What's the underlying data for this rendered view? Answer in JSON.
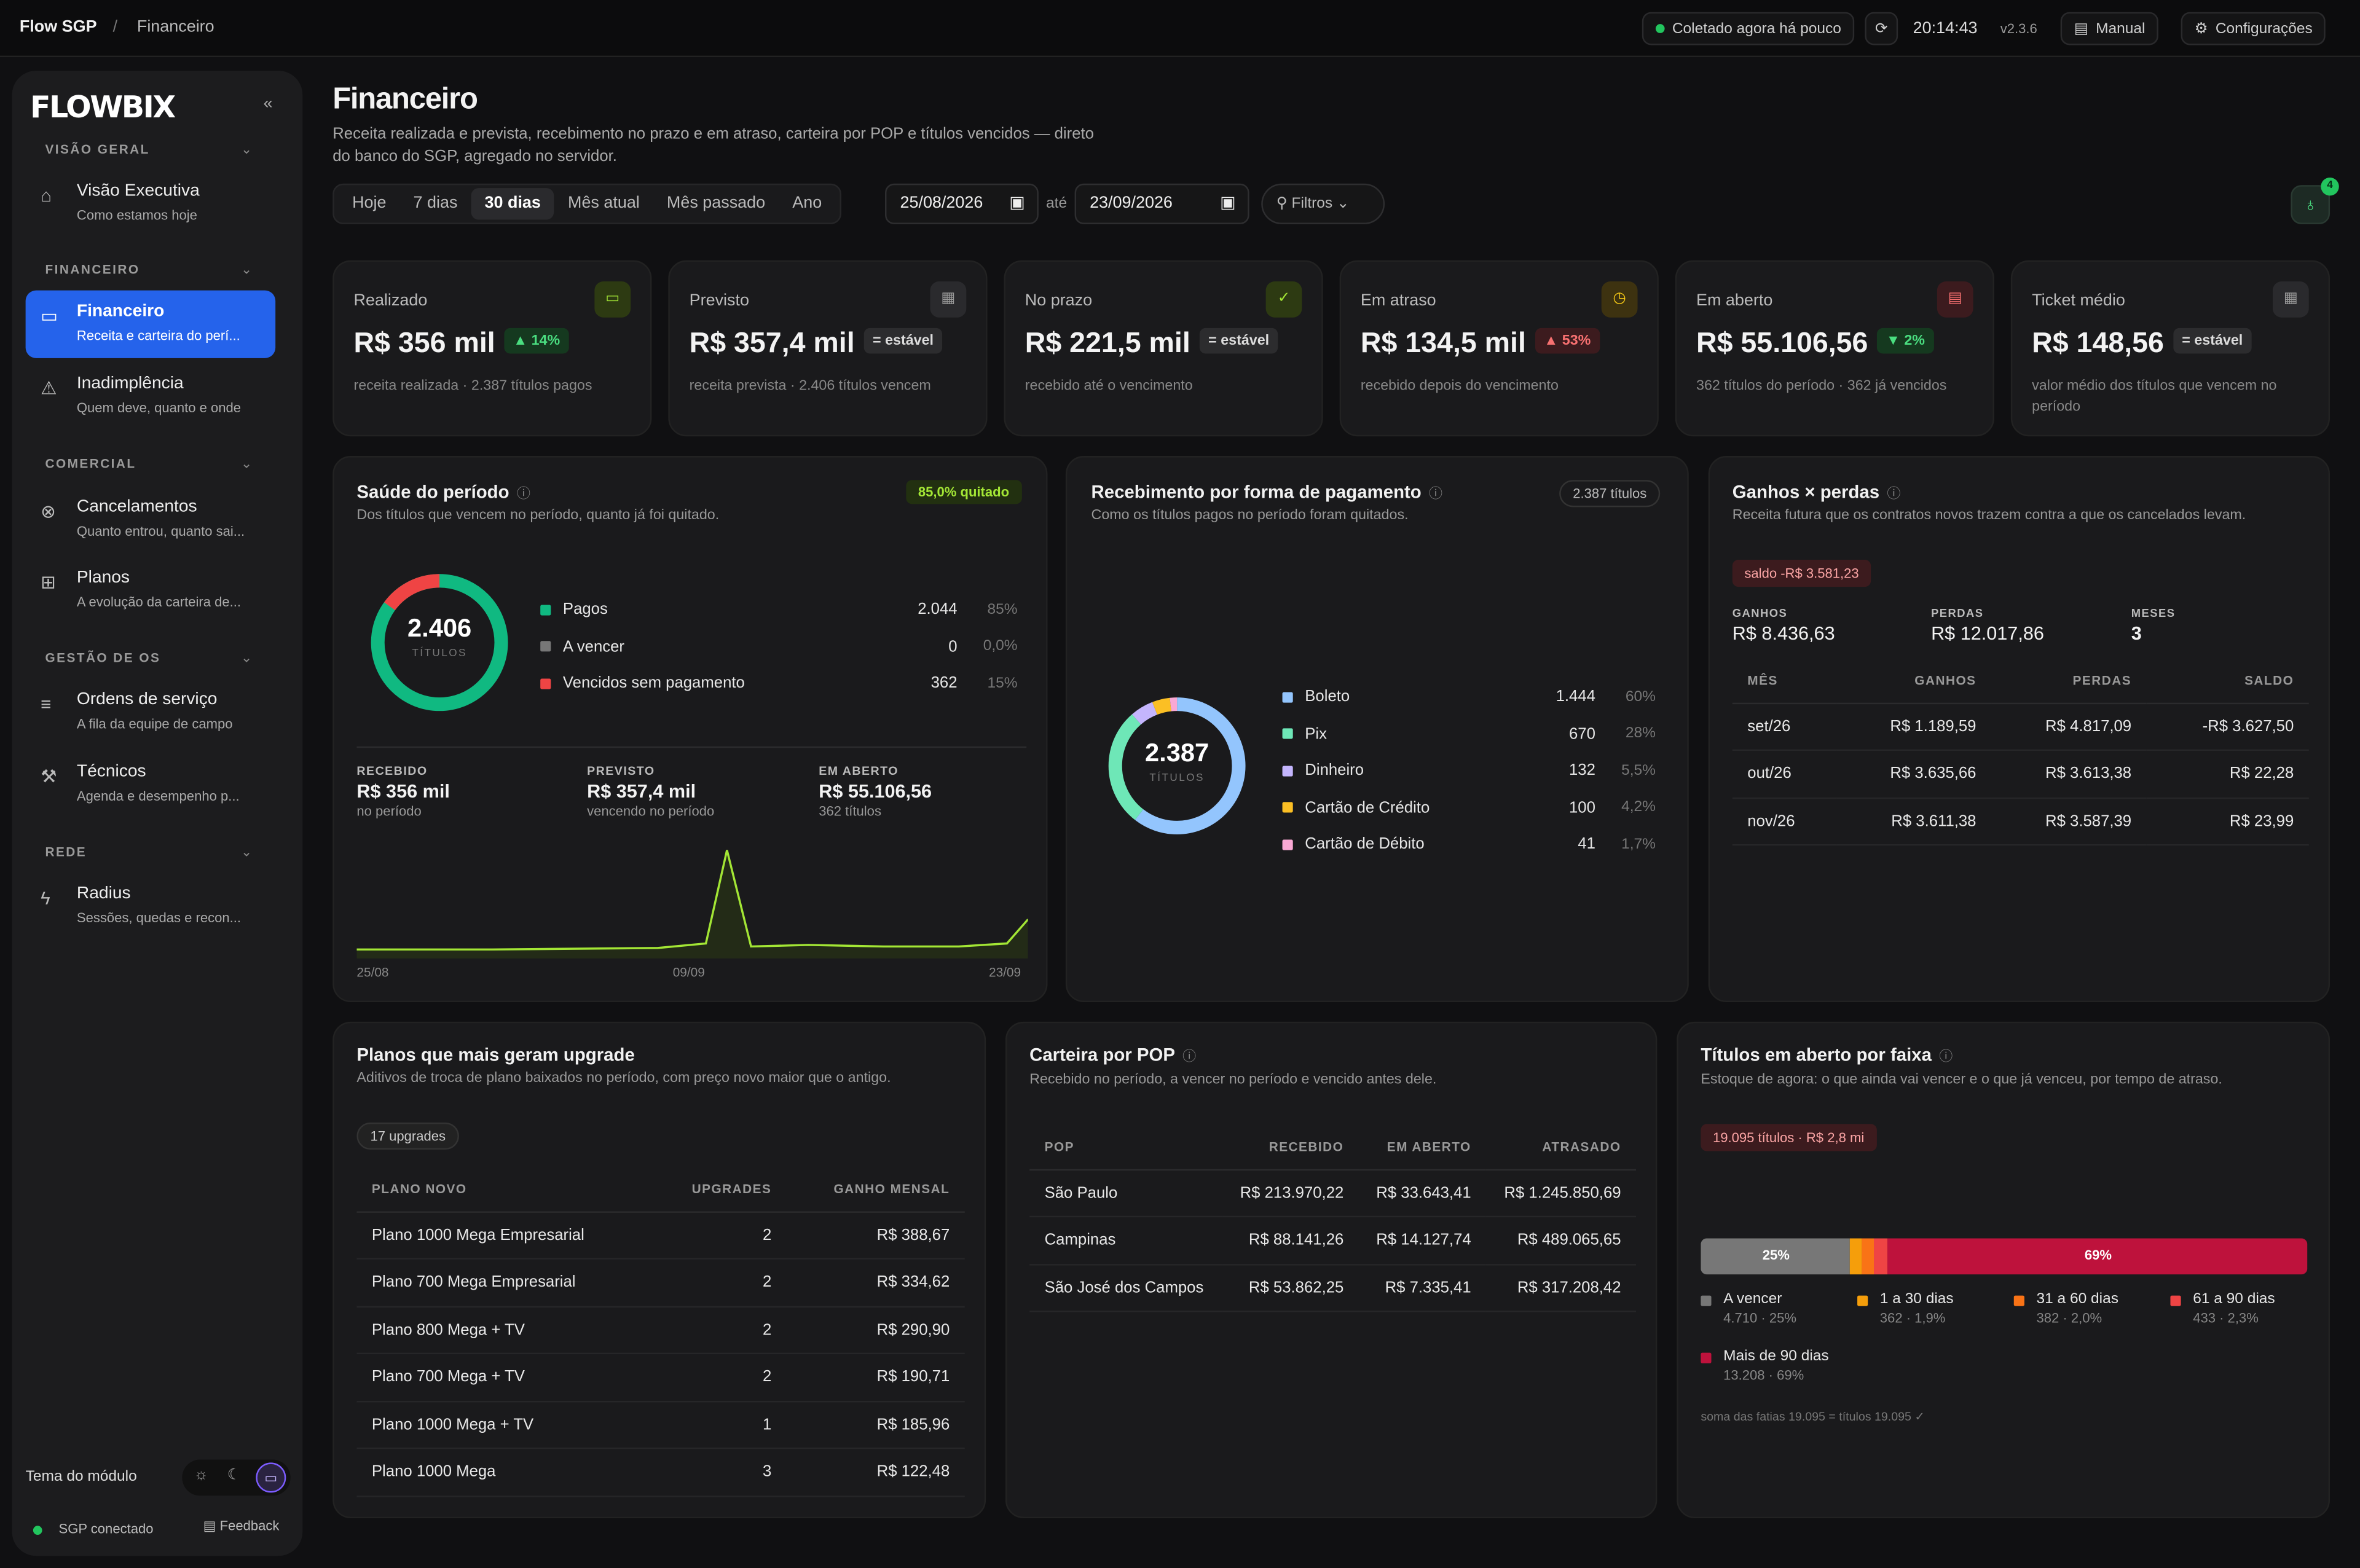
{
  "topbar": {
    "brand": "Flow SGP",
    "sep": "/",
    "crumb": "Financeiro",
    "collected": "Coletado agora há pouco",
    "time": "20:14:43",
    "version": "v2.3.6",
    "manual": "Manual",
    "settings": "Configurações"
  },
  "sidebar": {
    "logo": "FLOWBIX",
    "collapse": "«",
    "sections": {
      "overview": "VISÃO GERAL",
      "finance": "FINANCEIRO",
      "commercial": "COMERCIAL",
      "os": "GESTÃO DE OS",
      "network": "REDE"
    },
    "items": [
      {
        "title": "Visão Executiva",
        "sub": "Como estamos hoje"
      },
      {
        "title": "Financeiro",
        "sub": "Receita e carteira do perí..."
      },
      {
        "title": "Inadimplência",
        "sub": "Quem deve, quanto e onde"
      },
      {
        "title": "Cancelamentos",
        "sub": "Quanto entrou, quanto sai..."
      },
      {
        "title": "Planos",
        "sub": "A evolução da carteira de..."
      },
      {
        "title": "Ordens de serviço",
        "sub": "A fila da equipe de campo"
      },
      {
        "title": "Técnicos",
        "sub": "Agenda e desempenho p..."
      },
      {
        "title": "Radius",
        "sub": "Sessões, quedas e recon..."
      }
    ],
    "theme_label": "Tema do módulo",
    "status": "SGP conectado",
    "feedback": "Feedback"
  },
  "header": {
    "title": "Financeiro",
    "subtitle": "Receita realizada e prevista, recebimento no prazo e em atraso, carteira por POP e títulos vencidos — direto do banco do SGP, agregado no servidor.",
    "tabs": [
      "Hoje",
      "7 dias",
      "30 dias",
      "Mês atual",
      "Mês passado",
      "Ano"
    ],
    "date_from": "25/08/2026",
    "ate": "até",
    "date_to": "23/09/2026",
    "filters": "Filtros",
    "notif_count": "4"
  },
  "kpis": [
    {
      "label": "Realizado",
      "value": "R$ 356 mil",
      "badge": "▲ 14%",
      "note": "receita realizada · 2.387 títulos pagos"
    },
    {
      "label": "Previsto",
      "value": "R$ 357,4 mil",
      "badge": "= estável",
      "note": "receita prevista · 2.406 títulos vencem"
    },
    {
      "label": "No prazo",
      "value": "R$ 221,5 mil",
      "badge": "= estável",
      "note": "recebido até o vencimento"
    },
    {
      "label": "Em atraso",
      "value": "R$ 134,5 mil",
      "badge": "▲ 53%",
      "note": "recebido depois do vencimento"
    },
    {
      "label": "Em aberto",
      "value": "R$ 55.106,56",
      "badge": "▼ 2%",
      "note": "362 títulos do período · 362 já vencidos"
    },
    {
      "label": "Ticket médio",
      "value": "R$ 148,56",
      "badge": "= estável",
      "note": "valor médio dos títulos que vencem no período"
    }
  ],
  "health": {
    "title": "Saúde do período",
    "subtitle": "Dos títulos que vencem no período, quanto já foi quitado.",
    "badge": "85,0% quitado",
    "total": "2.406",
    "total_label": "TÍTULOS",
    "legend": [
      {
        "name": "Pagos",
        "count": "2.044",
        "pct": "85%",
        "color": "#10b981"
      },
      {
        "name": "A vencer",
        "count": "0",
        "pct": "0,0%",
        "color": "#777777"
      },
      {
        "name": "Vencidos sem pagamento",
        "count": "362",
        "pct": "15%",
        "color": "#ef4444"
      }
    ],
    "stats": [
      {
        "k": "RECEBIDO",
        "v": "R$ 356 mil",
        "n": "no período"
      },
      {
        "k": "PREVISTO",
        "v": "R$ 357,4 mil",
        "n": "vencendo no período"
      },
      {
        "k": "EM ABERTO",
        "v": "R$ 55.106,56",
        "n": "362 títulos"
      }
    ],
    "spark_dates": [
      "25/08",
      "09/09",
      "23/09"
    ]
  },
  "payment": {
    "title": "Recebimento por forma de pagamento",
    "subtitle": "Como os títulos pagos no período foram quitados.",
    "badge": "2.387 títulos",
    "total": "2.387",
    "total_label": "TÍTULOS",
    "legend": [
      {
        "name": "Boleto",
        "count": "1.444",
        "pct": "60%",
        "color": "#93c5fd"
      },
      {
        "name": "Pix",
        "count": "670",
        "pct": "28%",
        "color": "#6ee7b7"
      },
      {
        "name": "Dinheiro",
        "count": "132",
        "pct": "5,5%",
        "color": "#c4b5fd"
      },
      {
        "name": "Cartão de Crédito",
        "count": "100",
        "pct": "4,2%",
        "color": "#fbbf24"
      },
      {
        "name": "Cartão de Débito",
        "count": "41",
        "pct": "1,7%",
        "color": "#f9a8d4"
      }
    ]
  },
  "gains": {
    "title": "Ganhos × perdas",
    "subtitle": "Receita futura que os contratos novos trazem contra a que os cancelados levam.",
    "saldo": "saldo -R$ 3.581,23",
    "summary": [
      {
        "k": "GANHOS",
        "v": "R$ 8.436,63"
      },
      {
        "k": "PERDAS",
        "v": "R$ 12.017,86"
      },
      {
        "k": "MESES",
        "v": "3"
      }
    ],
    "cols": [
      "MÊS",
      "GANHOS",
      "PERDAS",
      "SALDO"
    ],
    "rows": [
      [
        "set/26",
        "R$ 1.189,59",
        "R$ 4.817,09",
        "-R$ 3.627,50"
      ],
      [
        "out/26",
        "R$ 3.635,66",
        "R$ 3.613,38",
        "R$ 22,28"
      ],
      [
        "nov/26",
        "R$ 3.611,38",
        "R$ 3.587,39",
        "R$ 23,99"
      ]
    ]
  },
  "upgrades": {
    "title": "Planos que mais geram upgrade",
    "subtitle": "Aditivos de troca de plano baixados no período, com preço novo maior que o antigo.",
    "badge": "17 upgrades",
    "cols": [
      "PLANO NOVO",
      "UPGRADES",
      "GANHO MENSAL"
    ],
    "rows": [
      [
        "Plano 1000 Mega Empresarial",
        "2",
        "R$ 388,67"
      ],
      [
        "Plano 700 Mega Empresarial",
        "2",
        "R$ 334,62"
      ],
      [
        "Plano 800 Mega + TV",
        "2",
        "R$ 290,90"
      ],
      [
        "Plano 700 Mega + TV",
        "2",
        "R$ 190,71"
      ],
      [
        "Plano 1000 Mega + TV",
        "1",
        "R$ 185,96"
      ],
      [
        "Plano 1000 Mega",
        "3",
        "R$ 122,48"
      ]
    ]
  },
  "pop": {
    "title": "Carteira por POP",
    "subtitle": "Recebido no período, a vencer no período e vencido antes dele.",
    "cols": [
      "POP",
      "RECEBIDO",
      "EM ABERTO",
      "ATRASADO"
    ],
    "rows": [
      [
        "São Paulo",
        "R$ 213.970,22",
        "R$ 33.643,41",
        "R$ 1.245.850,69"
      ],
      [
        "Campinas",
        "R$ 88.141,26",
        "R$ 14.127,74",
        "R$ 489.065,65"
      ],
      [
        "São José dos Campos",
        "R$ 53.862,25",
        "R$ 7.335,41",
        "R$ 317.208,42"
      ]
    ]
  },
  "aging": {
    "title": "Títulos em aberto por faixa",
    "subtitle": "Estoque de agora: o que ainda vai vencer e o que já venceu, por tempo de atraso.",
    "badge": "19.095 títulos · R$ 2,8 mi",
    "bar_labels": [
      "25%",
      "69%"
    ],
    "legend": [
      {
        "name": "A vencer",
        "sub": "4.710 · 25%",
        "color": "#777777"
      },
      {
        "name": "1 a 30 dias",
        "sub": "362 · 1,9%",
        "color": "#f59e0b"
      },
      {
        "name": "31 a 60 dias",
        "sub": "382 · 2,0%",
        "color": "#f97316"
      },
      {
        "name": "61 a 90 dias",
        "sub": "433 · 2,3%",
        "color": "#ef4444"
      },
      {
        "name": "Mais de 90 dias",
        "sub": "13.208 · 69%",
        "color": "#be123c"
      }
    ],
    "footer": "soma das fatias 19.095 = títulos 19.095 ✓"
  }
}
